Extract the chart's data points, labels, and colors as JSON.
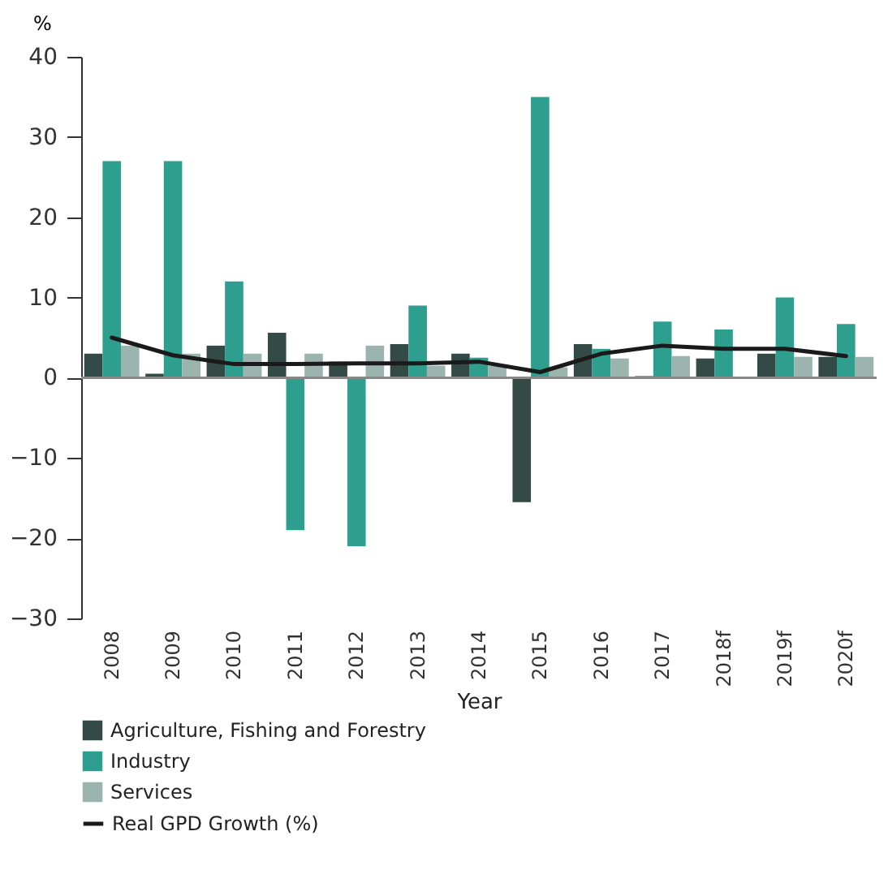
{
  "chart_data": {
    "type": "bar",
    "xlabel": "Year",
    "ylabel": "%",
    "categories": [
      "2008",
      "2009",
      "2010",
      "2011",
      "2012",
      "2013",
      "2014",
      "2015",
      "2016",
      "2017",
      "2018f",
      "2019f",
      "2020f"
    ],
    "series": [
      {
        "name": "Agriculture, Fishing and Forestry",
        "color": "#344a46",
        "values": [
          3.0,
          0.5,
          4.0,
          5.6,
          2.0,
          4.2,
          3.0,
          -15.5,
          4.2,
          0.2,
          2.4,
          3.0,
          2.6
        ]
      },
      {
        "name": "Industry",
        "color": "#2e9e8f",
        "values": [
          27,
          27,
          12,
          -19,
          -21,
          9,
          2.5,
          35,
          3.6,
          7.0,
          6.0,
          10,
          6.7
        ]
      },
      {
        "name": "Services",
        "color": "#9bb5ae",
        "values": [
          4.0,
          3.0,
          3.0,
          3.0,
          4.0,
          1.5,
          1.5,
          1.3,
          2.4,
          2.7,
          null,
          2.6,
          2.6
        ]
      },
      {
        "name": "Real GPD Growth (%)",
        "type": "line",
        "color": "#1a1a1a",
        "values": [
          5.0,
          2.8,
          1.7,
          1.7,
          1.8,
          1.8,
          2.0,
          0.7,
          3.0,
          4.0,
          3.6,
          3.6,
          2.7
        ]
      }
    ],
    "ylim": [
      -30,
      40
    ],
    "yticks": [
      -30,
      -20,
      -10,
      0,
      10,
      20,
      30,
      40
    ],
    "legend": "bottom"
  }
}
